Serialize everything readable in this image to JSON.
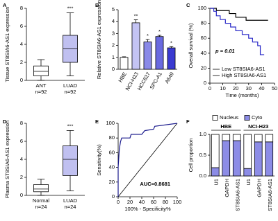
{
  "chart_data": [
    {
      "type": "box",
      "panel_label": "A",
      "ylabel": "Tissue ST8SIA6-AS1 expression",
      "categories": [
        "ANT",
        "LUAD"
      ],
      "sample_sizes": [
        "n=92",
        "n=92"
      ],
      "stats": [
        {
          "min": 0,
          "q1": 0.5,
          "median": 1,
          "q3": 1.6,
          "max": 2.3
        },
        {
          "min": 0.5,
          "q1": 2,
          "median": 3.5,
          "q3": 5,
          "max": 7.5
        }
      ],
      "colors": [
        "#ffffff",
        "#c0c0f0"
      ],
      "significance": [
        null,
        "***"
      ],
      "ylim": [
        0,
        8
      ],
      "yticks": [
        0,
        2,
        4,
        6,
        8
      ]
    },
    {
      "type": "bar",
      "panel_label": "B",
      "ylabel": "Relative ST8SIA6-AS1 expression",
      "categories": [
        "HBE",
        "NCI-H23",
        "HCC827",
        "SPC-A1",
        "A549"
      ],
      "values": [
        1.0,
        3.9,
        2.3,
        2.75,
        1.8
      ],
      "errors": [
        0.05,
        0.25,
        0.2,
        0.1,
        0.1
      ],
      "colors": [
        "#ffffff",
        "#c4c4f4",
        "#8a8ae8",
        "#6a6ae0",
        "#3a3ad0"
      ],
      "significance": [
        null,
        "**",
        "*",
        "*",
        "*"
      ],
      "ylim": [
        0,
        5
      ],
      "yticks": [
        0,
        1,
        2,
        3,
        4,
        5
      ]
    },
    {
      "type": "line",
      "panel_label": "C",
      "ylabel": "Overall survival (%)",
      "xlabel": "Time (months)",
      "series": [
        {
          "name": "Low ST8SIA6-AS1",
          "color": "#000000",
          "x": [
            0,
            5,
            5,
            15,
            15,
            20,
            20,
            28,
            28,
            45
          ],
          "values": [
            100,
            100,
            97,
            97,
            93,
            93,
            88,
            88,
            84,
            84
          ]
        },
        {
          "name": "High ST8SIA6-AS1",
          "color": "#2a2ac8",
          "x": [
            0,
            3,
            3,
            5,
            5,
            8,
            8,
            12,
            12,
            16,
            16,
            20,
            20,
            25,
            25,
            30,
            30,
            33,
            33,
            37,
            37,
            39,
            39,
            42
          ],
          "values": [
            100,
            100,
            96,
            96,
            90,
            90,
            85,
            85,
            80,
            80,
            75,
            75,
            70,
            70,
            65,
            65,
            60,
            60,
            55,
            55,
            50,
            50,
            38,
            38
          ]
        }
      ],
      "annotation": "p = 0.01",
      "legend": "lower left",
      "xlim": [
        0,
        50
      ],
      "xticks": [
        0,
        10,
        20,
        30,
        40,
        50
      ],
      "ylim": [
        0,
        100
      ],
      "yticks": [
        0,
        20,
        40,
        60,
        80,
        100
      ]
    },
    {
      "type": "box",
      "panel_label": "D",
      "ylabel": "Plasma ST8SIA6-AS1 expression",
      "categories": [
        "Normal",
        "LUAD"
      ],
      "sample_sizes": [
        "n=24",
        "n=24"
      ],
      "stats": [
        {
          "min": 0,
          "q1": 0.4,
          "median": 0.7,
          "q3": 1.2,
          "max": 1.8
        },
        {
          "min": 0.5,
          "q1": 2.2,
          "median": 4,
          "q3": 5.5,
          "max": 7.2
        }
      ],
      "colors": [
        "#ffffff",
        "#c0c0f0"
      ],
      "significance": [
        null,
        "***"
      ],
      "ylim": [
        0,
        8
      ],
      "yticks": [
        0,
        2,
        4,
        6,
        8
      ]
    },
    {
      "type": "line",
      "panel_label": "E",
      "ylabel": "Sensitivity(%)",
      "xlabel": "100% - Specificity%",
      "series": [
        {
          "color": "#1a1a8c",
          "x": [
            0,
            0,
            2,
            4,
            6,
            20,
            22,
            40,
            45,
            60,
            62,
            100
          ],
          "values": [
            0,
            40,
            65,
            75,
            80,
            80,
            85,
            85,
            90,
            92,
            96,
            100
          ]
        }
      ],
      "annotation": "AUC=0.8681",
      "diagonal": true,
      "xlim": [
        0,
        100
      ],
      "xticks": [
        0,
        20,
        40,
        60,
        80,
        100
      ],
      "ylim": [
        0,
        100
      ],
      "yticks": [
        0,
        20,
        40,
        60,
        80,
        100
      ]
    },
    {
      "type": "stacked_bar",
      "panel_label": "F",
      "ylabel": "Cell proportion",
      "groups": [
        "HBE",
        "NCI-H23"
      ],
      "categories": [
        "U1",
        "GAPDH",
        "ST8SIA6-AS1",
        "U1",
        "GAPDH",
        "ST8SIA6-AS1"
      ],
      "series": [
        {
          "name": "Nucleus",
          "color": "#ffffff",
          "values": [
            0.8,
            0.15,
            0.15,
            0.82,
            0.18,
            0.18
          ]
        },
        {
          "name": "Cyto",
          "color": "#8c8ce6",
          "values": [
            0.2,
            0.85,
            0.85,
            0.18,
            0.82,
            0.82
          ]
        }
      ],
      "legend": "top",
      "ylim": [
        0,
        1
      ],
      "yticks": [
        {
          "value": 0,
          "label": "0.0"
        },
        {
          "value": 0.5,
          "label": "0.5"
        },
        {
          "value": 1,
          "label": "1.0"
        }
      ]
    }
  ]
}
